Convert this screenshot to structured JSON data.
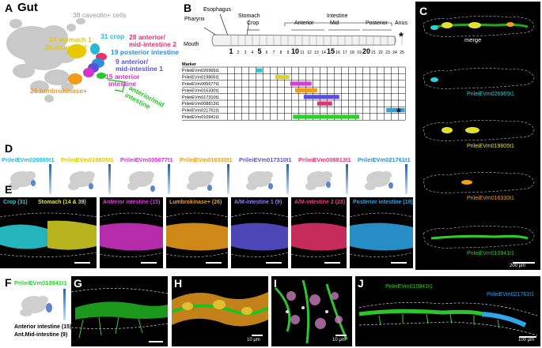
{
  "panels": {
    "A": {
      "letter": "A",
      "title": "Gut",
      "clusters": [
        {
          "text": "38 caveolin+ cells",
          "color": "#9a9a9a"
        },
        {
          "text": "14 stomach 1",
          "color": "#e8c800"
        },
        {
          "text": "39 stomach 2",
          "color": "#e8c800"
        },
        {
          "text": "31 crop",
          "color": "#27b9d6"
        },
        {
          "text": "28 anterior/",
          "color": "#e8336d"
        },
        {
          "text": "mid-intestine 2",
          "color": "#e8336d"
        },
        {
          "text": "19 posterior intestine",
          "color": "#2c8fdc"
        },
        {
          "text": "9 anterior/",
          "color": "#5a52d6"
        },
        {
          "text": "mid-intestine 1",
          "color": "#5a52d6"
        },
        {
          "text": "15 anterior",
          "color": "#d434c8"
        },
        {
          "text": "intestine",
          "color": "#d434c8"
        },
        {
          "text": "26 lumbrokinase+",
          "color": "#f29a1a"
        },
        {
          "text": "anterior/mid",
          "color": "#2bc62b"
        },
        {
          "text": "intestine",
          "color": "#2bc62b"
        }
      ]
    },
    "B": {
      "letter": "B",
      "regions": {
        "pharynx": "Pharynx",
        "esophagus": "Esophagus",
        "stomach": "Stomach",
        "crop": "Crop",
        "intestine": "Intestine",
        "anterior": "Anterior",
        "mid": "Mid",
        "posterior": "Posterior",
        "anus": "Anus",
        "mouth": "Mouth"
      },
      "segments": [
        "1",
        "2",
        "3",
        "4",
        "5",
        "6",
        "7",
        "8",
        "9",
        "10",
        "11",
        "12",
        "13",
        "14",
        "15",
        "16",
        "17",
        "18",
        "19",
        "20",
        "21",
        "22",
        "23",
        "24",
        "25"
      ],
      "marker_header": "Marker",
      "asterisk": "*",
      "markers": [
        {
          "name": "PrileiEVm026965t1",
          "color": "#27c6d9",
          "start": 5,
          "end": 5.9
        },
        {
          "name": "PrileiEVm019805t1",
          "color": "#d8d424",
          "start": 7.7,
          "end": 9.7
        },
        {
          "name": "PrileiEVm005677t1",
          "color": "#d93cd6",
          "start": 9.8,
          "end": 12.8
        },
        {
          "name": "PrileiEVm016330t1",
          "color": "#f29a1a",
          "start": 10.5,
          "end": 13.6
        },
        {
          "name": "PrileiEVm017310t1",
          "color": "#5b4fd8",
          "start": 11.7,
          "end": 16.7
        },
        {
          "name": "PrileiEVm008813t1",
          "color": "#ec2f7c",
          "start": 13.6,
          "end": 15.7
        },
        {
          "name": "PrileiEVm021761t1",
          "color": "#2ca2e3",
          "start": 23.3,
          "end": 25.9
        },
        {
          "name": "PrileiEVm010941t1",
          "color": "#2bd12b",
          "start": 10.2,
          "end": 19.5
        }
      ]
    },
    "C": {
      "letter": "C",
      "labels": [
        {
          "text": "merge",
          "color": "#ffffff"
        },
        {
          "text": "PrileiEVm026965t1",
          "color": "#2ad4dd"
        },
        {
          "text": "PrileiEVm019805t1",
          "color": "#e4e030"
        },
        {
          "text": "PrileiEVm016330t1",
          "color": "#f2a01c"
        },
        {
          "text": "PrileiEVm010941t1",
          "color": "#2bd12b"
        }
      ],
      "scale": "200 μm"
    },
    "D": {
      "letter": "D",
      "genes": [
        {
          "text": "PrileiEVm026965t1",
          "color": "#27b9d6"
        },
        {
          "text": "PrileiEVm019805t1",
          "color": "#d8c800"
        },
        {
          "text": "PrileiEVm005677t1",
          "color": "#d434c8"
        },
        {
          "text": "PrileiEVm016330t1",
          "color": "#f29a1a"
        },
        {
          "text": "PrileiEVm017310t1",
          "color": "#5a52d6"
        },
        {
          "text": "PrileiEVm008813t1",
          "color": "#e8336d"
        },
        {
          "text": "PrileiEVm021761t1",
          "color": "#2c8fdc"
        }
      ],
      "cbar_ticks": [
        "4",
        "3",
        "2",
        "1",
        "0"
      ]
    },
    "E": {
      "letter": "E",
      "labels": [
        {
          "text": "Crop (31)",
          "color": "#2ad4dd"
        },
        {
          "text": "Stomach (14 & 39)",
          "color": "#e4e030"
        },
        {
          "text": "Anterior intestine (15)",
          "color": "#e43ae0"
        },
        {
          "text": "Lumbrokinase+ (26)",
          "color": "#f2a01c"
        },
        {
          "text": "A/M-intestine 1 (9)",
          "color": "#8a80ff"
        },
        {
          "text": "A/M-intestine 2 (28)",
          "color": "#f0407e"
        },
        {
          "text": "Posterior intestine (19)",
          "color": "#2ea6e8"
        }
      ]
    },
    "F": {
      "letter": "F",
      "gene": "PrileiEVm010941t1",
      "gene_color": "#2bd12b",
      "caption1": "Anterior intestine (15)",
      "caption2": "Ant.Mid-intestine (9)"
    },
    "G": {
      "letter": "G"
    },
    "H": {
      "letter": "H",
      "scale": "10 μm"
    },
    "I": {
      "letter": "I",
      "scale": "10 μm"
    },
    "J": {
      "letter": "J",
      "label1": "PrileiEVm010941t1",
      "label2": "PrileiEVm021761t1",
      "scale": "100 μm"
    }
  }
}
